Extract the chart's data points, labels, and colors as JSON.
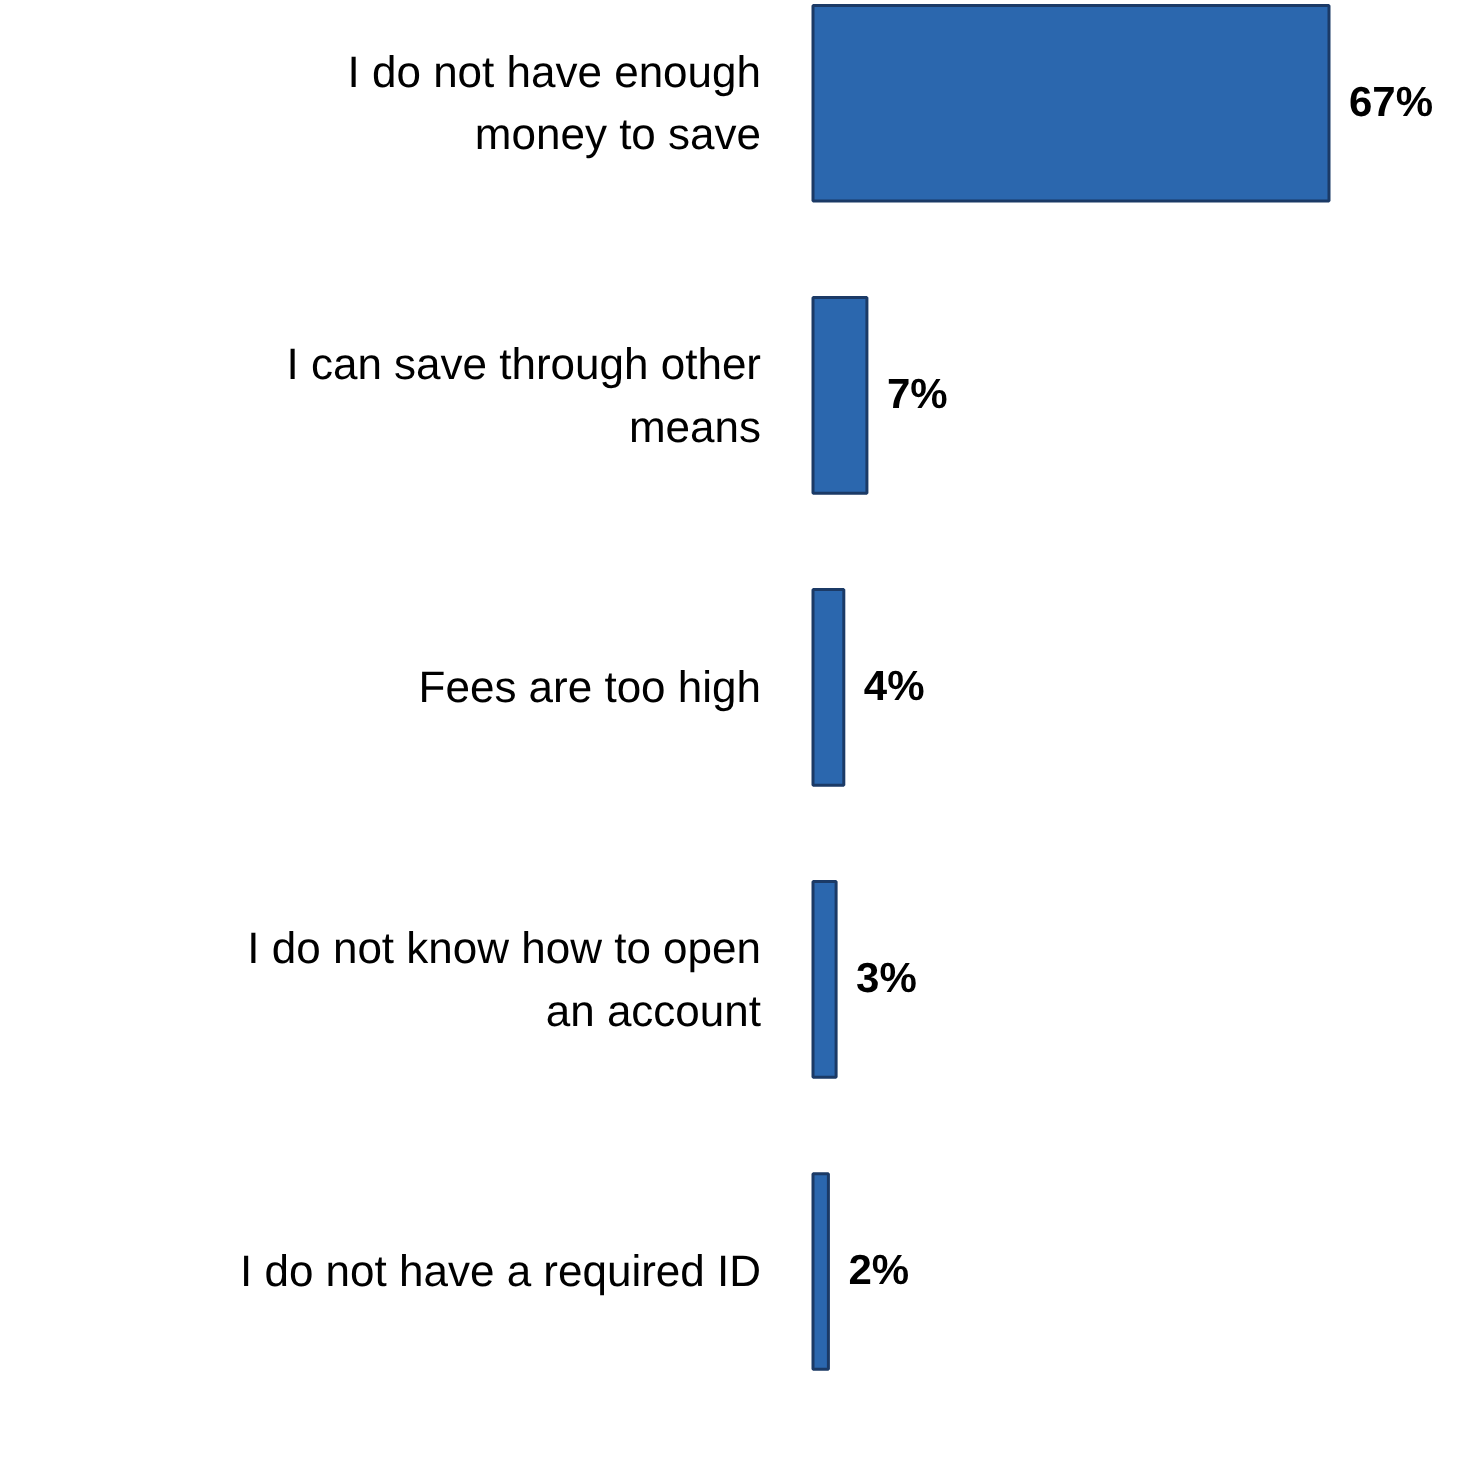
{
  "chart_data": {
    "type": "bar",
    "orientation": "horizontal",
    "categories": [
      "I do not have enough money to save",
      "I can save through other means",
      "Fees are too high",
      "I do not know how to open an account",
      "I do not have a required ID"
    ],
    "values": [
      67,
      7,
      4,
      3,
      2
    ],
    "color": "#2b67ae",
    "value_labels": [
      "67%",
      "7%",
      "4%",
      "3%",
      "2%"
    ],
    "tick_labels": false
  }
}
